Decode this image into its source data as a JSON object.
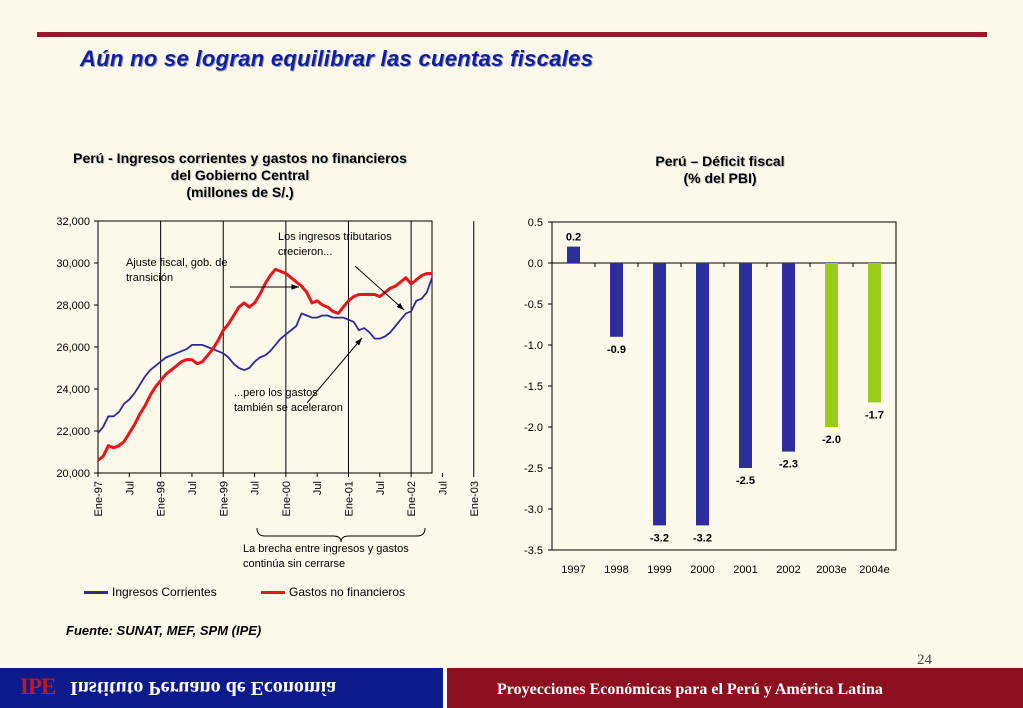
{
  "slide": {
    "title": "Aún no se logran equilibrar las cuentas fiscales",
    "source": "Fuente: SUNAT, MEF, SPM (IPE)",
    "page_number": "24",
    "footer_logo": "IPE",
    "footer_institute": "Instituto Peruano de Economía",
    "footer_caption": "Proyecciones Económicas para el Perú y América Latina",
    "colors": {
      "rule": "#8c1f2a",
      "title": "#0c1fa6",
      "footer_left": "#0d1a8c",
      "footer_right": "#8c1020"
    }
  },
  "left_chart": {
    "title_lines": [
      "Perú - Ingresos corrientes y gastos no financieros",
      "del Gobierno Central",
      "(millones de S/.)"
    ],
    "annotations": {
      "ajuste": "Ajuste fiscal, gob. de transición",
      "ingresos": "Los ingresos tributarios crecieron...",
      "gastos": "...pero los gastos también se aceleraron",
      "brecha": "La brecha entre ingresos y gastos continúa sin cerrarse"
    },
    "legend": [
      "Ingresos Corrientes",
      "Gastos no financieros"
    ]
  },
  "right_chart": {
    "title_lines": [
      "Perú – Déficit fiscal",
      "(% del PBI)"
    ]
  },
  "chart_data": [
    {
      "type": "line",
      "title": "Perú - Ingresos corrientes y gastos no financieros del Gobierno Central (millones de S/.)",
      "ylim": [
        20000,
        32000
      ],
      "y_ticks": [
        "32,000",
        "30,000",
        "28,000",
        "26,000",
        "24,000",
        "22,000",
        "20,000"
      ],
      "x_tick_labels": [
        "Ene-97",
        "Jul",
        "Ene-98",
        "Jul",
        "Ene-99",
        "Jul",
        "Ene-00",
        "Jul",
        "Ene-01",
        "Jul",
        "Ene-02",
        "Jul",
        "Ene-03"
      ],
      "x_start": "1997-01",
      "legend_position": "bottom",
      "series": [
        {
          "name": "Ingresos Corrientes",
          "color": "#2a2a9e",
          "values": [
            21900,
            22200,
            22700,
            22700,
            22900,
            23300,
            23500,
            23800,
            24200,
            24600,
            24900,
            25100,
            25300,
            25500,
            25600,
            25700,
            25800,
            25900,
            26100,
            26100,
            26100,
            26000,
            25900,
            25800,
            25700,
            25500,
            25200,
            25000,
            24900,
            25000,
            25300,
            25500,
            25600,
            25800,
            26100,
            26400,
            26600,
            26800,
            27000,
            27600,
            27500,
            27400,
            27400,
            27500,
            27500,
            27400,
            27400,
            27400,
            27300,
            27200,
            26800,
            26900,
            26700,
            26400,
            26400,
            26500,
            26700,
            27000,
            27300,
            27600,
            27700,
            28200,
            28300,
            28600,
            29300
          ]
        },
        {
          "name": "Gastos no financieros",
          "color": "#e8161c",
          "values": [
            20600,
            20800,
            21300,
            21200,
            21300,
            21500,
            21900,
            22300,
            22800,
            23200,
            23700,
            24100,
            24400,
            24700,
            24900,
            25100,
            25300,
            25400,
            25400,
            25200,
            25300,
            25600,
            25900,
            26300,
            26800,
            27100,
            27500,
            27900,
            28100,
            27900,
            28100,
            28500,
            29000,
            29400,
            29700,
            29600,
            29500,
            29300,
            29100,
            28900,
            28600,
            28100,
            28200,
            28000,
            27900,
            27700,
            27600,
            27900,
            28200,
            28400,
            28500,
            28500,
            28500,
            28500,
            28400,
            28600,
            28800,
            28900,
            29100,
            29300,
            29000,
            29200,
            29400,
            29500,
            29500
          ]
        }
      ]
    },
    {
      "type": "bar",
      "title": "Perú – Déficit fiscal (% del PBI)",
      "categories": [
        "1997",
        "1998",
        "1999",
        "2000",
        "2001",
        "2002",
        "2003e",
        "2004e"
      ],
      "values": [
        0.2,
        -0.9,
        -3.2,
        -3.2,
        -2.5,
        -2.3,
        -2.0,
        -1.7
      ],
      "value_labels": [
        "0.2",
        "-0.9",
        "-3.2",
        "-3.2",
        "-2.5",
        "-2.3",
        "-2.0",
        "-1.7"
      ],
      "bar_colors": [
        "#2d2d9c",
        "#2d2d9c",
        "#2d2d9c",
        "#2d2d9c",
        "#2d2d9c",
        "#2d2d9c",
        "#9bcc1a",
        "#9bcc1a"
      ],
      "ylim": [
        -3.5,
        0.5
      ],
      "y_ticks": [
        "0.5",
        "0.0",
        "-0.5",
        "-1.0",
        "-1.5",
        "-2.0",
        "-2.5",
        "-3.0",
        "-3.5"
      ],
      "grid": false
    }
  ]
}
